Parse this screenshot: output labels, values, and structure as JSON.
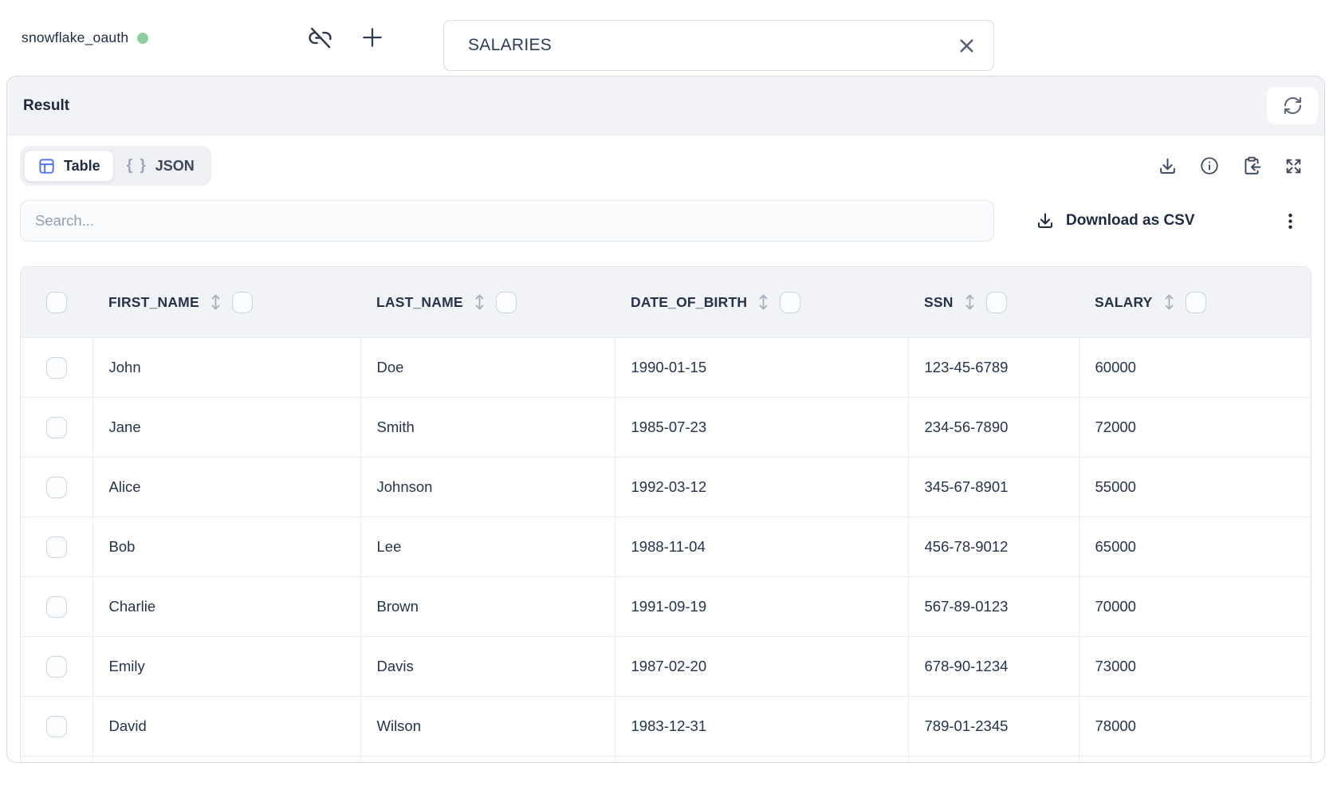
{
  "topbar": {
    "connection_name": "snowflake_oauth",
    "tab_title": "SALARIES"
  },
  "panel": {
    "title": "Result"
  },
  "tabs": {
    "table_label": "Table",
    "json_glyph": "{ }",
    "json_label": "JSON"
  },
  "toolbar": {
    "search_placeholder": "Search...",
    "download_csv_label": "Download as CSV"
  },
  "table": {
    "columns": [
      "FIRST_NAME",
      "LAST_NAME",
      "DATE_OF_BIRTH",
      "SSN",
      "SALARY"
    ],
    "rows": [
      [
        "John",
        "Doe",
        "1990-01-15",
        "123-45-6789",
        "60000"
      ],
      [
        "Jane",
        "Smith",
        "1985-07-23",
        "234-56-7890",
        "72000"
      ],
      [
        "Alice",
        "Johnson",
        "1992-03-12",
        "345-67-8901",
        "55000"
      ],
      [
        "Bob",
        "Lee",
        "1988-11-04",
        "456-78-9012",
        "65000"
      ],
      [
        "Charlie",
        "Brown",
        "1991-09-19",
        "567-89-0123",
        "70000"
      ],
      [
        "Emily",
        "Davis",
        "1987-02-20",
        "678-90-1234",
        "73000"
      ],
      [
        "David",
        "Wilson",
        "1983-12-31",
        "789-01-2345",
        "78000"
      ]
    ]
  },
  "icons": {
    "topbar": [
      "unlink-icon",
      "plus-icon",
      "close-icon"
    ],
    "panel": [
      "refresh-icon"
    ],
    "tools": [
      "download-icon",
      "info-icon",
      "clipboard-paste-icon",
      "expand-icon",
      "kebab-icon",
      "sort-icon",
      "table-grid-icon",
      "json-braces-icon"
    ]
  },
  "colors": {
    "accent_blue": "#4e74f3",
    "status_green": "#8ecf9f",
    "header_gray": "#f1f3f6",
    "border_gray": "#d6dce4",
    "text_dark": "#1e2b42"
  }
}
